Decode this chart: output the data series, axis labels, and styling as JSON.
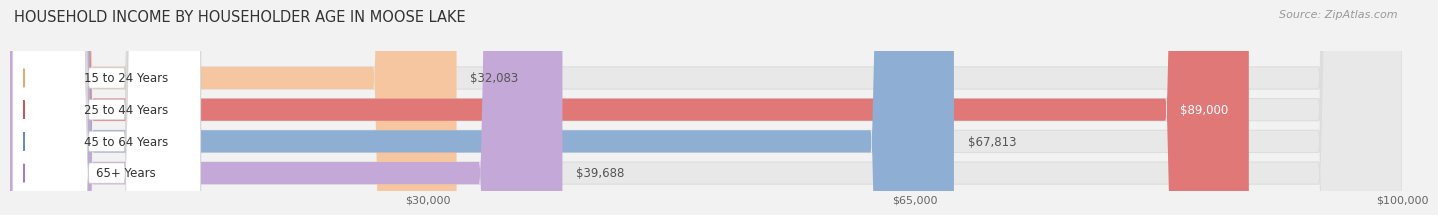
{
  "title": "HOUSEHOLD INCOME BY HOUSEHOLDER AGE IN MOOSE LAKE",
  "source": "Source: ZipAtlas.com",
  "categories": [
    "15 to 24 Years",
    "25 to 44 Years",
    "45 to 64 Years",
    "65+ Years"
  ],
  "values": [
    32083,
    89000,
    67813,
    39688
  ],
  "bar_colors": [
    "#f5c6a0",
    "#e07878",
    "#8eaed4",
    "#c4a8d8"
  ],
  "label_bg_colors": [
    "#e8a870",
    "#cc5555",
    "#6888c0",
    "#a878c0"
  ],
  "value_labels": [
    "$32,083",
    "$89,000",
    "$67,813",
    "$39,688"
  ],
  "value_inside": [
    false,
    true,
    false,
    false
  ],
  "x_ticks": [
    30000,
    65000,
    100000
  ],
  "x_tick_labels": [
    "$30,000",
    "$65,000",
    "$100,000"
  ],
  "xmax": 100000,
  "background_color": "#f2f2f2",
  "bar_background_color": "#e8e8e8",
  "row_bg_color_even": "#f5f5f5",
  "row_bg_color_odd": "#ececec",
  "title_fontsize": 10.5,
  "source_fontsize": 8,
  "label_fontsize": 8.5,
  "value_fontsize": 8.5
}
